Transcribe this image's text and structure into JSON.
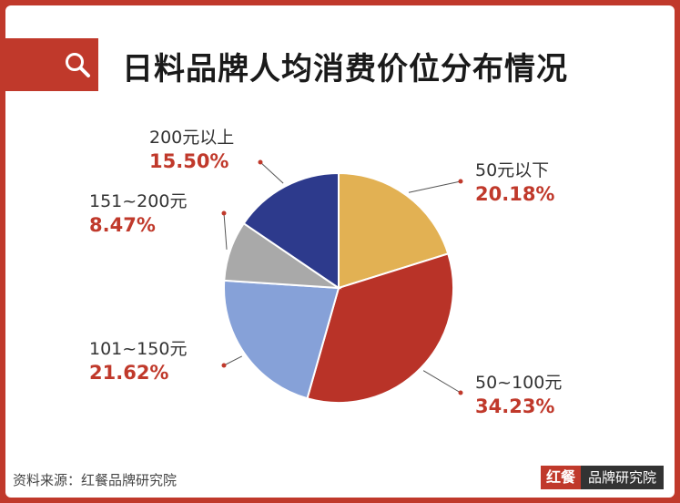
{
  "title": "日料品牌人均消费价位分布情况",
  "source": "资料来源：红餐品牌研究院",
  "brand": {
    "badge": "红餐",
    "name": "品牌研究院"
  },
  "chart_data": {
    "type": "pie",
    "title": "日料品牌人均消费价位分布情况",
    "slices": [
      {
        "label": "50元以下",
        "value": 20.18,
        "pct_text": "20.18%",
        "color": "#e2b153"
      },
      {
        "label": "50~100元",
        "value": 34.23,
        "pct_text": "34.23%",
        "color": "#b93328"
      },
      {
        "label": "101~150元",
        "value": 21.62,
        "pct_text": "21.62%",
        "color": "#86a1d8"
      },
      {
        "label": "151~200元",
        "value": 8.47,
        "pct_text": "8.47%",
        "color": "#a9a9a9"
      },
      {
        "label": "200元以上",
        "value": 15.5,
        "pct_text": "15.50%",
        "color": "#2d3a8c"
      }
    ],
    "start_angle_deg": 0,
    "direction": "clockwise",
    "legend": "none"
  }
}
